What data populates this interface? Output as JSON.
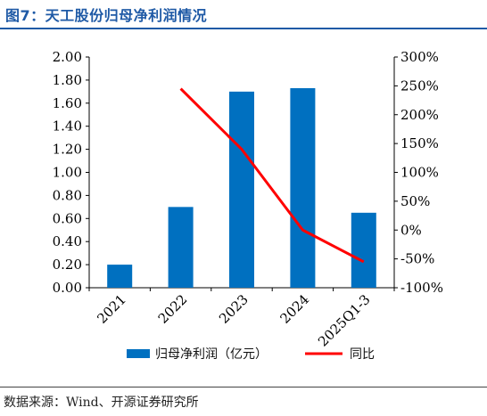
{
  "figure": {
    "title": "图7：天工股份归母净利润情况",
    "source": "数据来源：Wind、开源证券研究所"
  },
  "colors": {
    "bar": "#0070C0",
    "line": "#FF0000",
    "title": "#1f5aa6",
    "axis": "#000000"
  },
  "chart_data": {
    "type": "bar",
    "categories": [
      "2021",
      "2022",
      "2023",
      "2024",
      "2025Q1-3"
    ],
    "series": [
      {
        "name": "归母净利润（亿元）",
        "type": "bar",
        "axis": "left",
        "values": [
          0.2,
          0.7,
          1.7,
          1.73,
          0.65
        ]
      },
      {
        "name": "同比",
        "type": "line",
        "axis": "right",
        "values": [
          null,
          245,
          140,
          0,
          -55
        ]
      }
    ],
    "y_left": {
      "min": 0,
      "max": 2.0,
      "ticks": [
        "0.00",
        "0.20",
        "0.40",
        "0.60",
        "0.80",
        "1.00",
        "1.20",
        "1.40",
        "1.60",
        "1.80",
        "2.00"
      ]
    },
    "y_right": {
      "min": -100,
      "max": 300,
      "ticks": [
        "-100%",
        "-50%",
        "0%",
        "50%",
        "100%",
        "150%",
        "200%",
        "250%",
        "300%"
      ]
    },
    "grid": false,
    "legend_position": "bottom"
  }
}
